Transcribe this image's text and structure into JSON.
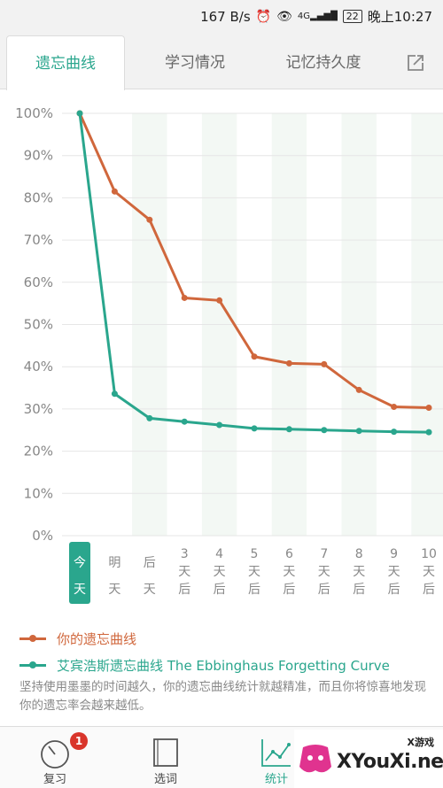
{
  "status_bar": {
    "speed": "167 B/s",
    "network": "4G",
    "battery": "22",
    "time": "晚上10:27"
  },
  "tabs": [
    {
      "label": "遗忘曲线",
      "active": true
    },
    {
      "label": "学习情况",
      "active": false
    },
    {
      "label": "记忆持久度",
      "active": false
    }
  ],
  "chart_data": {
    "type": "line",
    "categories": [
      "今天",
      "明天",
      "后天",
      "3天后",
      "4天后",
      "5天后",
      "6天后",
      "7天后",
      "8天后",
      "9天后",
      "10天后"
    ],
    "y_ticks": [
      "0%",
      "10%",
      "20%",
      "30%",
      "40%",
      "50%",
      "60%",
      "70%",
      "80%",
      "90%",
      "100%"
    ],
    "ylim": [
      0,
      100
    ],
    "series": [
      {
        "name": "你的遗忘曲线",
        "color": "#d0673c",
        "values": [
          100,
          81.5,
          74.8,
          56.3,
          55.7,
          42.4,
          40.8,
          40.6,
          34.5,
          30.5,
          30.3
        ]
      },
      {
        "name": "艾宾浩斯遗忘曲线 The Ebbinghaus Forgetting Curve",
        "color": "#2aa68d",
        "values": [
          100,
          33.6,
          27.8,
          27.0,
          26.2,
          25.4,
          25.2,
          25.0,
          24.8,
          24.6,
          24.5
        ]
      }
    ],
    "highlight_category": 0
  },
  "legend": {
    "item1": "你的遗忘曲线",
    "item2": "艾宾浩斯遗忘曲线 The Ebbinghaus Forgetting Curve"
  },
  "tip": "坚持使用墨墨的时间越久，你的遗忘曲线统计就越精准，而且你将惊喜地发现你的遗忘率会越来越低。",
  "bottom_nav": [
    {
      "label": "复习",
      "badge": "1"
    },
    {
      "label": "选词"
    },
    {
      "label": "统计",
      "active": true
    }
  ],
  "watermark": {
    "small": "X游戏",
    "big": "XYouXi.net"
  }
}
